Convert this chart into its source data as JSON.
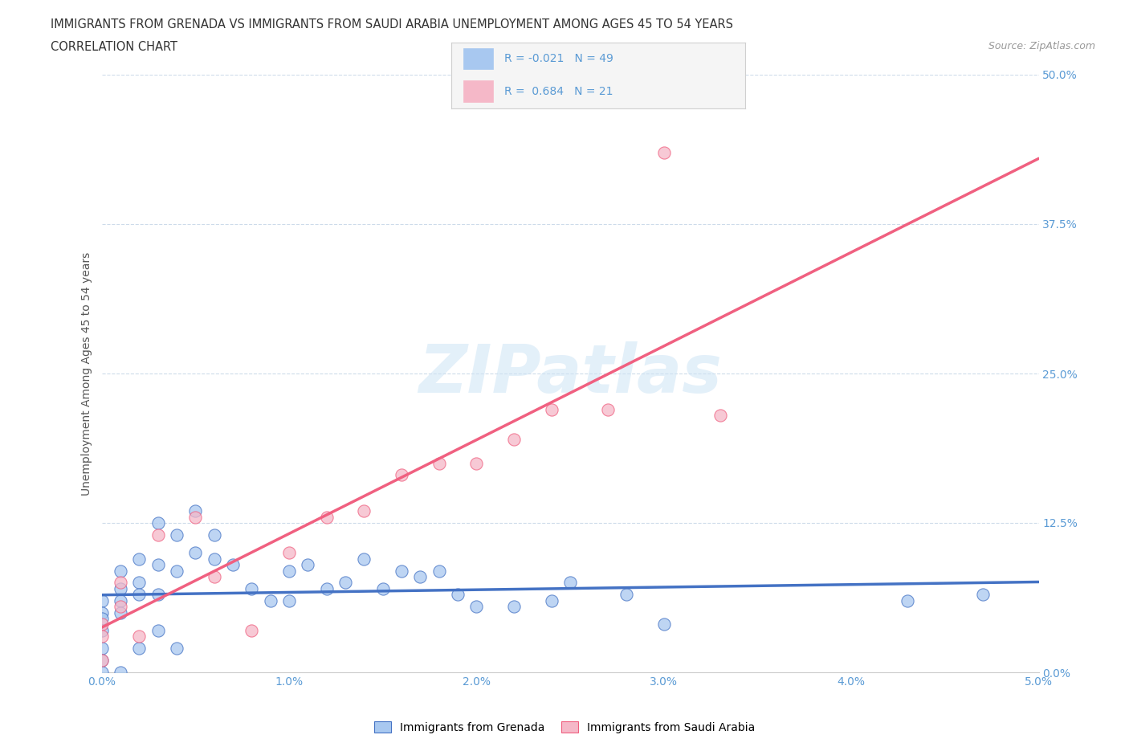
{
  "title_line1": "IMMIGRANTS FROM GRENADA VS IMMIGRANTS FROM SAUDI ARABIA UNEMPLOYMENT AMONG AGES 45 TO 54 YEARS",
  "title_line2": "CORRELATION CHART",
  "source_text": "Source: ZipAtlas.com",
  "ylabel": "Unemployment Among Ages 45 to 54 years",
  "xlim": [
    0.0,
    0.05
  ],
  "ylim": [
    0.0,
    0.5
  ],
  "xticks": [
    0.0,
    0.01,
    0.02,
    0.03,
    0.04,
    0.05
  ],
  "yticks": [
    0.0,
    0.125,
    0.25,
    0.375,
    0.5
  ],
  "xticklabels": [
    "0.0%",
    "1.0%",
    "2.0%",
    "3.0%",
    "4.0%",
    "5.0%"
  ],
  "yticklabels": [
    "0.0%",
    "12.5%",
    "25.0%",
    "37.5%",
    "50.0%"
  ],
  "watermark": "ZIPatlas",
  "color_grenada": "#a8c8f0",
  "color_saudi": "#f5b8c8",
  "color_grenada_line": "#4472c4",
  "color_saudi_line": "#f06080",
  "color_axis_labels": "#5b9bd5",
  "background_color": "#ffffff",
  "grenada_x": [
    0.0,
    0.0,
    0.0,
    0.0,
    0.0,
    0.0,
    0.0,
    0.001,
    0.001,
    0.001,
    0.001,
    0.001,
    0.002,
    0.002,
    0.002,
    0.002,
    0.003,
    0.003,
    0.003,
    0.003,
    0.004,
    0.004,
    0.004,
    0.005,
    0.005,
    0.006,
    0.006,
    0.007,
    0.008,
    0.009,
    0.01,
    0.01,
    0.011,
    0.012,
    0.013,
    0.014,
    0.015,
    0.016,
    0.017,
    0.018,
    0.019,
    0.02,
    0.022,
    0.024,
    0.025,
    0.028,
    0.03,
    0.043,
    0.047
  ],
  "grenada_y": [
    0.06,
    0.05,
    0.045,
    0.035,
    0.02,
    0.01,
    0.0,
    0.085,
    0.07,
    0.06,
    0.05,
    0.0,
    0.095,
    0.075,
    0.065,
    0.02,
    0.125,
    0.09,
    0.065,
    0.035,
    0.115,
    0.085,
    0.02,
    0.135,
    0.1,
    0.115,
    0.095,
    0.09,
    0.07,
    0.06,
    0.085,
    0.06,
    0.09,
    0.07,
    0.075,
    0.095,
    0.07,
    0.085,
    0.08,
    0.085,
    0.065,
    0.055,
    0.055,
    0.06,
    0.075,
    0.065,
    0.04,
    0.06,
    0.065
  ],
  "saudi_x": [
    0.0,
    0.0,
    0.0,
    0.001,
    0.001,
    0.002,
    0.003,
    0.005,
    0.006,
    0.008,
    0.01,
    0.012,
    0.014,
    0.016,
    0.018,
    0.02,
    0.022,
    0.024,
    0.027,
    0.03,
    0.033
  ],
  "saudi_y": [
    0.04,
    0.03,
    0.01,
    0.075,
    0.055,
    0.03,
    0.115,
    0.13,
    0.08,
    0.035,
    0.1,
    0.13,
    0.135,
    0.165,
    0.175,
    0.175,
    0.195,
    0.22,
    0.22,
    0.435,
    0.215
  ]
}
